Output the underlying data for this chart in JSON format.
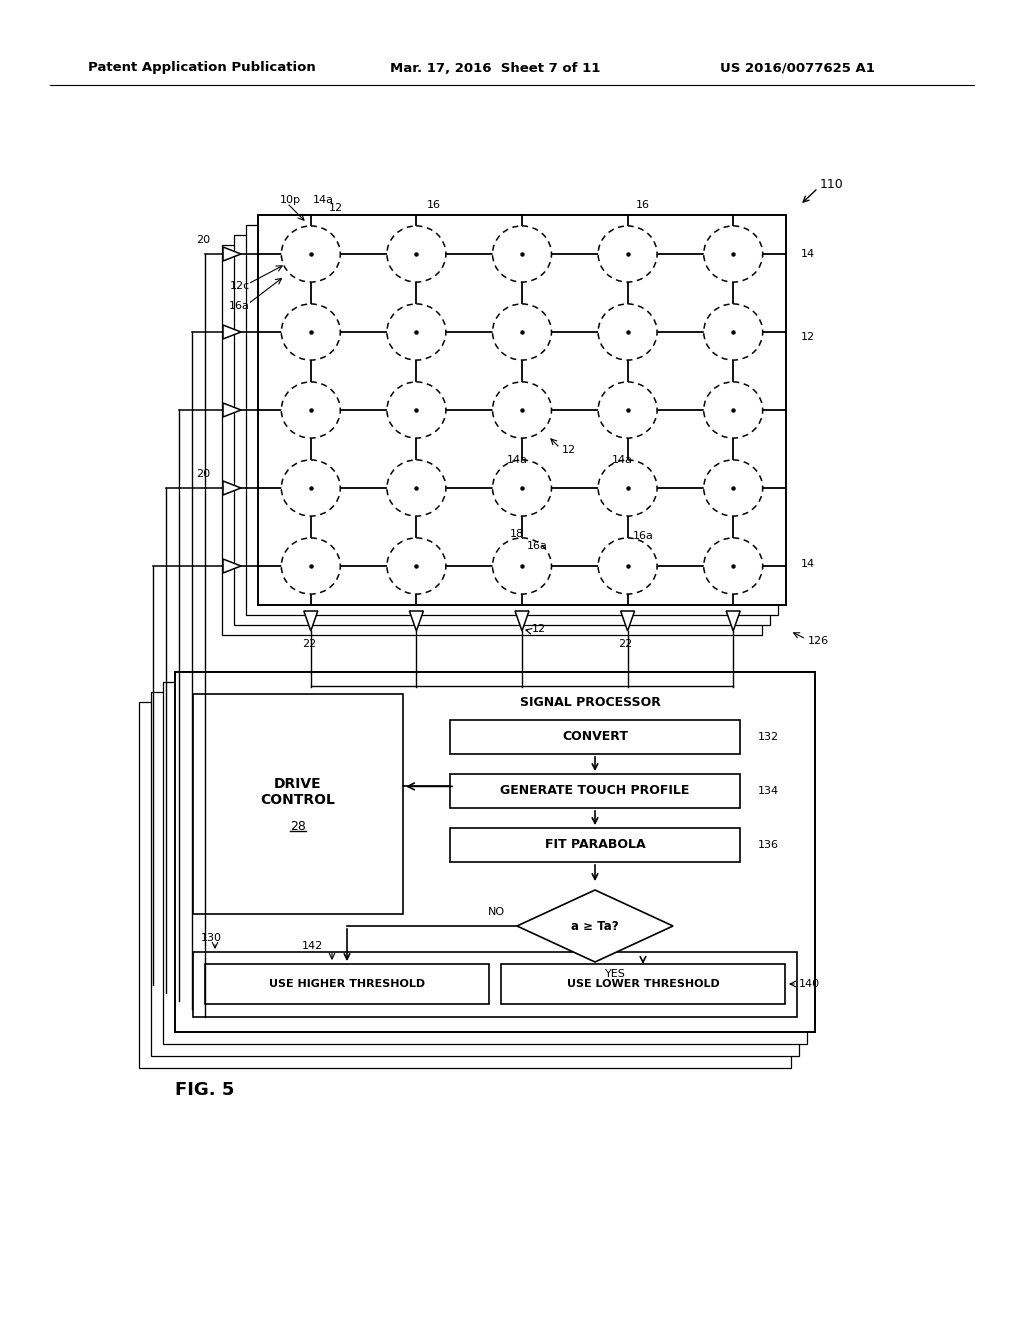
{
  "bg_color": "#ffffff",
  "header_left": "Patent Application Publication",
  "header_center": "Mar. 17, 2016  Sheet 7 of 11",
  "header_right": "US 2016/0077625 A1",
  "fig_label": "FIG. 5"
}
